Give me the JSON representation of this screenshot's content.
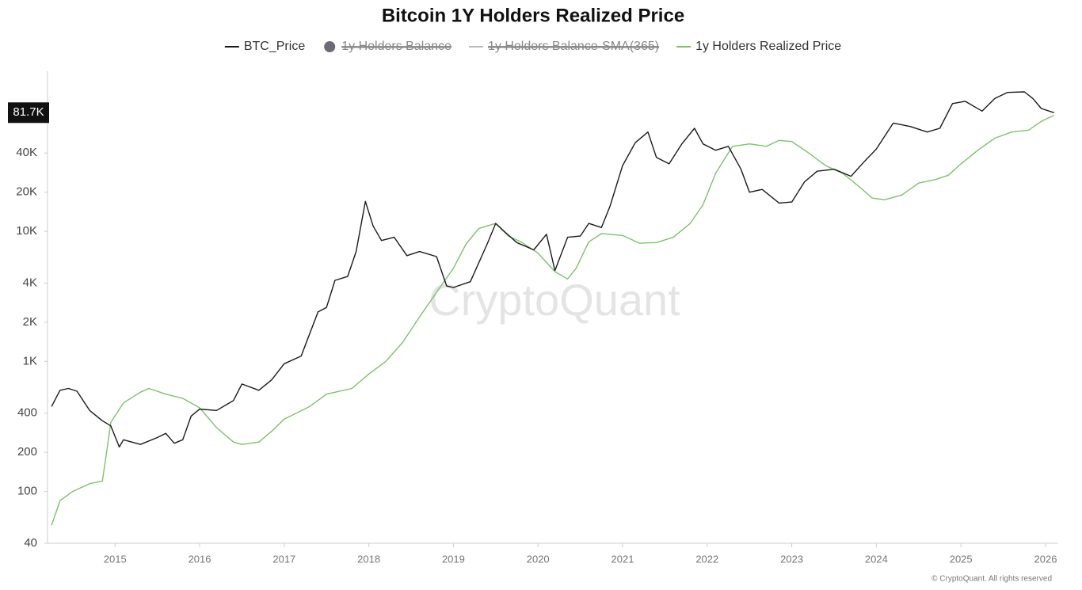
{
  "chart_data": {
    "type": "line",
    "title": "Bitcoin 1Y Holders Realized Price",
    "log_scale": true,
    "grid": false,
    "legend_position": "top",
    "xlim": [
      2014.23,
      2026.15
    ],
    "xticks": [
      2015,
      2016,
      2017,
      2018,
      2019,
      2020,
      2021,
      2022,
      2023,
      2024,
      2025,
      2026
    ],
    "ylim": [
      40,
      170000
    ],
    "yticks": [
      40,
      100,
      200,
      400,
      {
        "value": 1000,
        "label": "1K"
      },
      {
        "value": 2000,
        "label": "2K"
      },
      {
        "value": 4000,
        "label": "4K"
      },
      {
        "value": 10000,
        "label": "10K"
      },
      {
        "value": 20000,
        "label": "20K"
      },
      {
        "value": 40000,
        "label": "40K"
      }
    ],
    "last_value": {
      "value": 81700,
      "label": "81.7K"
    },
    "watermark": "CryptoQuant",
    "copyright": "© CryptoQuant. All rights reserved",
    "hidden_series": [
      {
        "name": "1y Holders Balance",
        "color": "#6b6b75",
        "marker": "circle"
      },
      {
        "name": "1y Holders Balance-SMA(365)",
        "color": "#bbbbbb",
        "marker": "line"
      }
    ],
    "series": [
      {
        "name": "BTC_Price",
        "color": "#1a1a1a",
        "x": [
          2014.25,
          2014.35,
          2014.45,
          2014.55,
          2014.7,
          2014.85,
          2014.95,
          2015.05,
          2015.1,
          2015.3,
          2015.5,
          2015.6,
          2015.7,
          2015.8,
          2015.9,
          2016.0,
          2016.2,
          2016.4,
          2016.5,
          2016.7,
          2016.85,
          2017.0,
          2017.2,
          2017.4,
          2017.5,
          2017.6,
          2017.75,
          2017.85,
          2017.96,
          2018.05,
          2018.15,
          2018.3,
          2018.45,
          2018.6,
          2018.8,
          2018.92,
          2019.0,
          2019.2,
          2019.4,
          2019.5,
          2019.6,
          2019.75,
          2019.95,
          2020.1,
          2020.2,
          2020.35,
          2020.5,
          2020.6,
          2020.75,
          2020.85,
          2021.0,
          2021.15,
          2021.3,
          2021.4,
          2021.55,
          2021.7,
          2021.85,
          2021.95,
          2022.1,
          2022.25,
          2022.4,
          2022.5,
          2022.65,
          2022.85,
          2023.0,
          2023.15,
          2023.3,
          2023.5,
          2023.7,
          2023.85,
          2024.0,
          2024.2,
          2024.4,
          2024.6,
          2024.75,
          2024.9,
          2025.05,
          2025.25,
          2025.4,
          2025.55,
          2025.75,
          2025.85,
          2025.95,
          2026.1
        ],
        "values": [
          450,
          600,
          620,
          590,
          420,
          350,
          320,
          220,
          250,
          230,
          260,
          280,
          235,
          250,
          380,
          430,
          420,
          500,
          670,
          600,
          720,
          960,
          1100,
          2400,
          2600,
          4200,
          4500,
          7000,
          17000,
          11000,
          8500,
          9000,
          6500,
          7000,
          6400,
          3800,
          3700,
          4100,
          8000,
          11500,
          10000,
          8200,
          7200,
          9500,
          5000,
          9000,
          9200,
          11500,
          10700,
          15500,
          32000,
          48000,
          58000,
          37000,
          33000,
          47000,
          62000,
          47000,
          42000,
          45000,
          30000,
          20000,
          21000,
          16500,
          16800,
          24000,
          29000,
          30000,
          26500,
          34000,
          43000,
          68000,
          64000,
          58000,
          62000,
          96000,
          100000,
          84000,
          105000,
          117000,
          118000,
          105000,
          88000,
          81700
        ]
      },
      {
        "name": "1y Holders Realized Price",
        "color": "#7cc26a",
        "x": [
          2014.25,
          2014.35,
          2014.5,
          2014.7,
          2014.85,
          2014.9,
          2014.95,
          2015.1,
          2015.3,
          2015.4,
          2015.6,
          2015.8,
          2016.0,
          2016.2,
          2016.4,
          2016.5,
          2016.7,
          2016.85,
          2017.0,
          2017.3,
          2017.5,
          2017.8,
          2018.0,
          2018.2,
          2018.4,
          2018.6,
          2018.8,
          2019.0,
          2019.15,
          2019.3,
          2019.5,
          2019.65,
          2019.8,
          2020.0,
          2020.2,
          2020.35,
          2020.45,
          2020.6,
          2020.75,
          2021.0,
          2021.2,
          2021.4,
          2021.6,
          2021.8,
          2021.95,
          2022.1,
          2022.3,
          2022.5,
          2022.7,
          2022.85,
          2023.0,
          2023.2,
          2023.4,
          2023.6,
          2023.8,
          2023.95,
          2024.1,
          2024.3,
          2024.5,
          2024.7,
          2024.85,
          2025.0,
          2025.2,
          2025.4,
          2025.6,
          2025.8,
          2025.95,
          2026.1
        ],
        "values": [
          55,
          85,
          100,
          115,
          120,
          200,
          340,
          480,
          580,
          620,
          560,
          520,
          440,
          310,
          240,
          230,
          240,
          290,
          360,
          450,
          560,
          620,
          800,
          1000,
          1400,
          2200,
          3400,
          5200,
          8000,
          10500,
          11500,
          9200,
          8300,
          6800,
          4900,
          4300,
          5200,
          8300,
          9600,
          9300,
          8100,
          8200,
          9000,
          11500,
          16000,
          28000,
          45000,
          47000,
          45000,
          50000,
          49000,
          40000,
          32000,
          28000,
          22000,
          18000,
          17500,
          19000,
          23500,
          25000,
          27000,
          33000,
          42000,
          52000,
          58000,
          60000,
          70000,
          78000
        ]
      }
    ]
  }
}
